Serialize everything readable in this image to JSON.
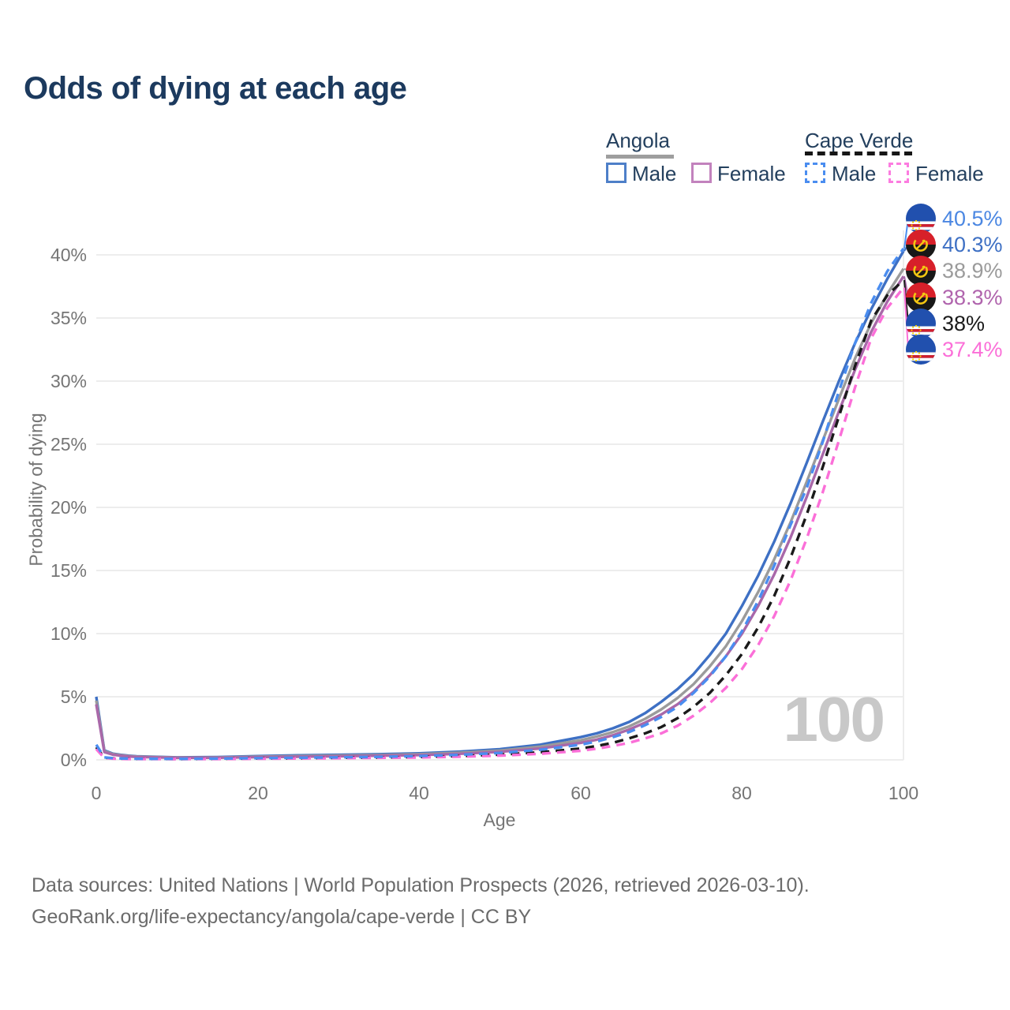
{
  "page": {
    "title": "Odds of dying at each age",
    "watermark_age": "100"
  },
  "legend": {
    "groups": [
      {
        "label": "Angola",
        "style": "solid",
        "line_color": "#9e9e9e",
        "items": [
          {
            "label": "Male",
            "color": "#4e7fc8"
          },
          {
            "label": "Female",
            "color": "#c282bd"
          }
        ]
      },
      {
        "label": "Cape Verde",
        "style": "dashed",
        "line_color": "#161616",
        "items": [
          {
            "label": "Male",
            "color": "#4a8df0"
          },
          {
            "label": "Female",
            "color": "#fc7ce0"
          }
        ]
      }
    ]
  },
  "axes": {
    "x_label": "Age",
    "y_label": "Probability of dying",
    "x_ticks": [
      "0",
      "20",
      "40",
      "60",
      "80",
      "100"
    ],
    "y_ticks": [
      "0%",
      "5%",
      "10%",
      "15%",
      "20%",
      "25%",
      "30%",
      "35%",
      "40%"
    ]
  },
  "footer": {
    "line1": "Data sources: United Nations | World Population Prospects (2026, retrieved 2026-03-10).",
    "line2": "GeoRank.org/life-expectancy/angola/cape-verde | CC BY"
  },
  "colors": {
    "title": "#1c3a5e",
    "grid": "#ededed",
    "tick_text": "#757575",
    "watermark": "#c8c8c8",
    "angola_male": "#3e70c4",
    "angola_both": "#9b9b9b",
    "angola_female": "#a968a9",
    "cape_verde_male": "#4a8df0",
    "cape_verde_both": "#1a1a1a",
    "cape_verde_female": "#fb6fd8"
  },
  "chart_data": {
    "type": "line",
    "title": "Odds of dying at each age",
    "xlabel": "Age",
    "ylabel": "Probability of dying",
    "xlim": [
      0,
      100
    ],
    "ylim": [
      0,
      42
    ],
    "grid": true,
    "legend_position": "top-right",
    "unit": "percent",
    "x": [
      0,
      1,
      2,
      3,
      4,
      5,
      10,
      15,
      20,
      25,
      30,
      35,
      40,
      45,
      50,
      55,
      60,
      62,
      64,
      66,
      68,
      70,
      72,
      74,
      76,
      78,
      80,
      82,
      84,
      86,
      88,
      90,
      92,
      94,
      96,
      98,
      100
    ],
    "series": [
      {
        "name": "Cape Verde Male",
        "country": "cape-verde",
        "sex": "male",
        "dashed": true,
        "color": "#4a8df0",
        "label_color": "#4b87e2",
        "end_label": "40.5%",
        "end_value": 40.5,
        "values": [
          1.2,
          0.2,
          0.14,
          0.11,
          0.1,
          0.09,
          0.08,
          0.1,
          0.14,
          0.17,
          0.2,
          0.24,
          0.3,
          0.4,
          0.55,
          0.8,
          1.2,
          1.45,
          1.8,
          2.2,
          2.75,
          3.4,
          4.2,
          5.3,
          6.6,
          8.2,
          10.2,
          12.6,
          15.4,
          18.6,
          21.5,
          25.2,
          29.2,
          33.0,
          36.2,
          38.7,
          40.5
        ]
      },
      {
        "name": "Angola Male",
        "country": "angola",
        "sex": "male",
        "dashed": false,
        "color": "#3e70c4",
        "label_color": "#3e70c4",
        "end_label": "40.3%",
        "end_value": 40.3,
        "values": [
          5.0,
          0.75,
          0.5,
          0.4,
          0.33,
          0.28,
          0.2,
          0.22,
          0.3,
          0.36,
          0.4,
          0.45,
          0.52,
          0.65,
          0.85,
          1.2,
          1.8,
          2.1,
          2.5,
          3.0,
          3.7,
          4.6,
          5.6,
          6.8,
          8.3,
          10.0,
          12.2,
          14.6,
          17.3,
          20.3,
          23.5,
          26.8,
          30.0,
          33.0,
          35.7,
          38.1,
          40.3
        ]
      },
      {
        "name": "Angola Both sexes",
        "country": "angola",
        "sex": "both",
        "dashed": false,
        "color": "#9b9b9b",
        "label_color": "#9b9b9b",
        "end_label": "38.9%",
        "end_value": 38.9,
        "values": [
          4.7,
          0.7,
          0.46,
          0.37,
          0.3,
          0.26,
          0.18,
          0.19,
          0.25,
          0.3,
          0.34,
          0.38,
          0.45,
          0.56,
          0.74,
          1.05,
          1.55,
          1.85,
          2.2,
          2.65,
          3.25,
          4.0,
          4.9,
          6.0,
          7.4,
          9.0,
          11.0,
          13.3,
          15.9,
          18.8,
          22.0,
          25.3,
          28.6,
          31.8,
          34.6,
          36.9,
          38.9
        ]
      },
      {
        "name": "Angola Female",
        "country": "angola",
        "sex": "female",
        "dashed": false,
        "color": "#a968a9",
        "label_color": "#b064ad",
        "end_label": "38.3%",
        "end_value": 38.3,
        "values": [
          4.4,
          0.62,
          0.42,
          0.33,
          0.27,
          0.23,
          0.16,
          0.17,
          0.21,
          0.25,
          0.29,
          0.33,
          0.38,
          0.48,
          0.64,
          0.9,
          1.35,
          1.6,
          1.95,
          2.4,
          2.95,
          3.6,
          4.4,
          5.4,
          6.7,
          8.2,
          10.0,
          12.2,
          14.7,
          17.6,
          20.8,
          24.2,
          27.6,
          30.9,
          33.9,
          36.3,
          38.3
        ]
      },
      {
        "name": "Cape Verde Both sexes",
        "country": "cape-verde",
        "sex": "both",
        "dashed": true,
        "color": "#1a1a1a",
        "label_color": "#1a1a1a",
        "end_label": "38%",
        "end_value": 38.0,
        "values": [
          1.0,
          0.17,
          0.12,
          0.1,
          0.09,
          0.08,
          0.07,
          0.08,
          0.11,
          0.13,
          0.16,
          0.19,
          0.23,
          0.3,
          0.42,
          0.6,
          0.9,
          1.1,
          1.35,
          1.7,
          2.1,
          2.6,
          3.3,
          4.2,
          5.3,
          6.7,
          8.4,
          10.5,
          13.0,
          16.0,
          19.4,
          23.2,
          27.2,
          31.2,
          34.8,
          36.8,
          38.0
        ]
      },
      {
        "name": "Cape Verde Female",
        "country": "cape-verde",
        "sex": "female",
        "dashed": true,
        "color": "#fb6fd8",
        "label_color": "#fb6fd8",
        "end_label": "37.4%",
        "end_value": 37.4,
        "values": [
          0.85,
          0.15,
          0.1,
          0.08,
          0.07,
          0.07,
          0.06,
          0.07,
          0.09,
          0.11,
          0.13,
          0.16,
          0.19,
          0.25,
          0.34,
          0.48,
          0.72,
          0.88,
          1.1,
          1.35,
          1.7,
          2.1,
          2.7,
          3.5,
          4.5,
          5.7,
          7.2,
          9.1,
          11.4,
          14.2,
          17.5,
          21.2,
          25.3,
          29.5,
          33.4,
          35.8,
          37.4
        ]
      }
    ]
  }
}
